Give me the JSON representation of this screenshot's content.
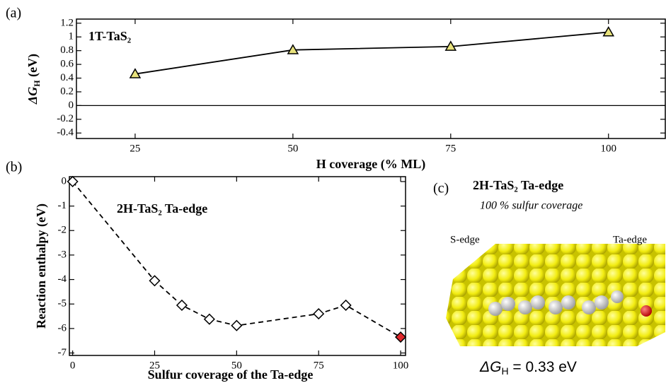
{
  "chart_data": [
    {
      "type": "line",
      "panel_label": "(a)",
      "title": "1T-TaS₂",
      "xlabel": "H coverage (% ML)",
      "ylabel": [
        "ΔG",
        "H",
        " (eV)"
      ],
      "x": [
        25,
        50,
        75,
        100
      ],
      "values": [
        0.46,
        0.81,
        0.86,
        1.07
      ],
      "color": "#000000",
      "marker": "triangle",
      "marker_color": "#e8e27c",
      "dashed": false,
      "zero_line": true,
      "xlim": [
        15.7,
        109
      ],
      "xticks": [
        25,
        50,
        75,
        100
      ],
      "ylim": [
        -0.48,
        1.26
      ],
      "yticks": [
        -0.4,
        -0.2,
        0,
        0.2,
        0.4,
        0.6,
        0.8,
        1,
        1.2
      ]
    },
    {
      "type": "line",
      "panel_label": "(b)",
      "title": "2H-TaS₂ Ta-edge",
      "xlabel": "Sulfur coverage of the Ta-edge",
      "ylabel": [
        "Reaction enthalpy (eV)"
      ],
      "x": [
        0,
        25,
        33.3,
        41.7,
        50,
        75,
        83.3,
        100
      ],
      "values": [
        0,
        -4.05,
        -5.05,
        -5.62,
        -5.88,
        -5.4,
        -5.05,
        -6.35
      ],
      "color": "#000000",
      "marker": "diamond",
      "marker_colors": [
        "#ffffff",
        "#ffffff",
        "#ffffff",
        "#ffffff",
        "#ffffff",
        "#ffffff",
        "#ffffff",
        "#e0282c"
      ],
      "dashed": true,
      "zero_line": false,
      "xlim": [
        -1,
        101.5
      ],
      "xticks": [
        0,
        25,
        50,
        75,
        100
      ],
      "ylim": [
        -7.1,
        0.2
      ],
      "yticks": [
        0,
        -1,
        -2,
        -3,
        -4,
        -5,
        -6,
        -7
      ]
    }
  ],
  "panel_c": {
    "label": "(c)",
    "title": "2H-TaS₂ Ta-edge",
    "subtitle": "100 % sulfur coverage",
    "left_label": "S-edge",
    "right_label": "Ta-edge",
    "result": [
      "ΔG",
      "H",
      " = 0.33 eV"
    ]
  }
}
